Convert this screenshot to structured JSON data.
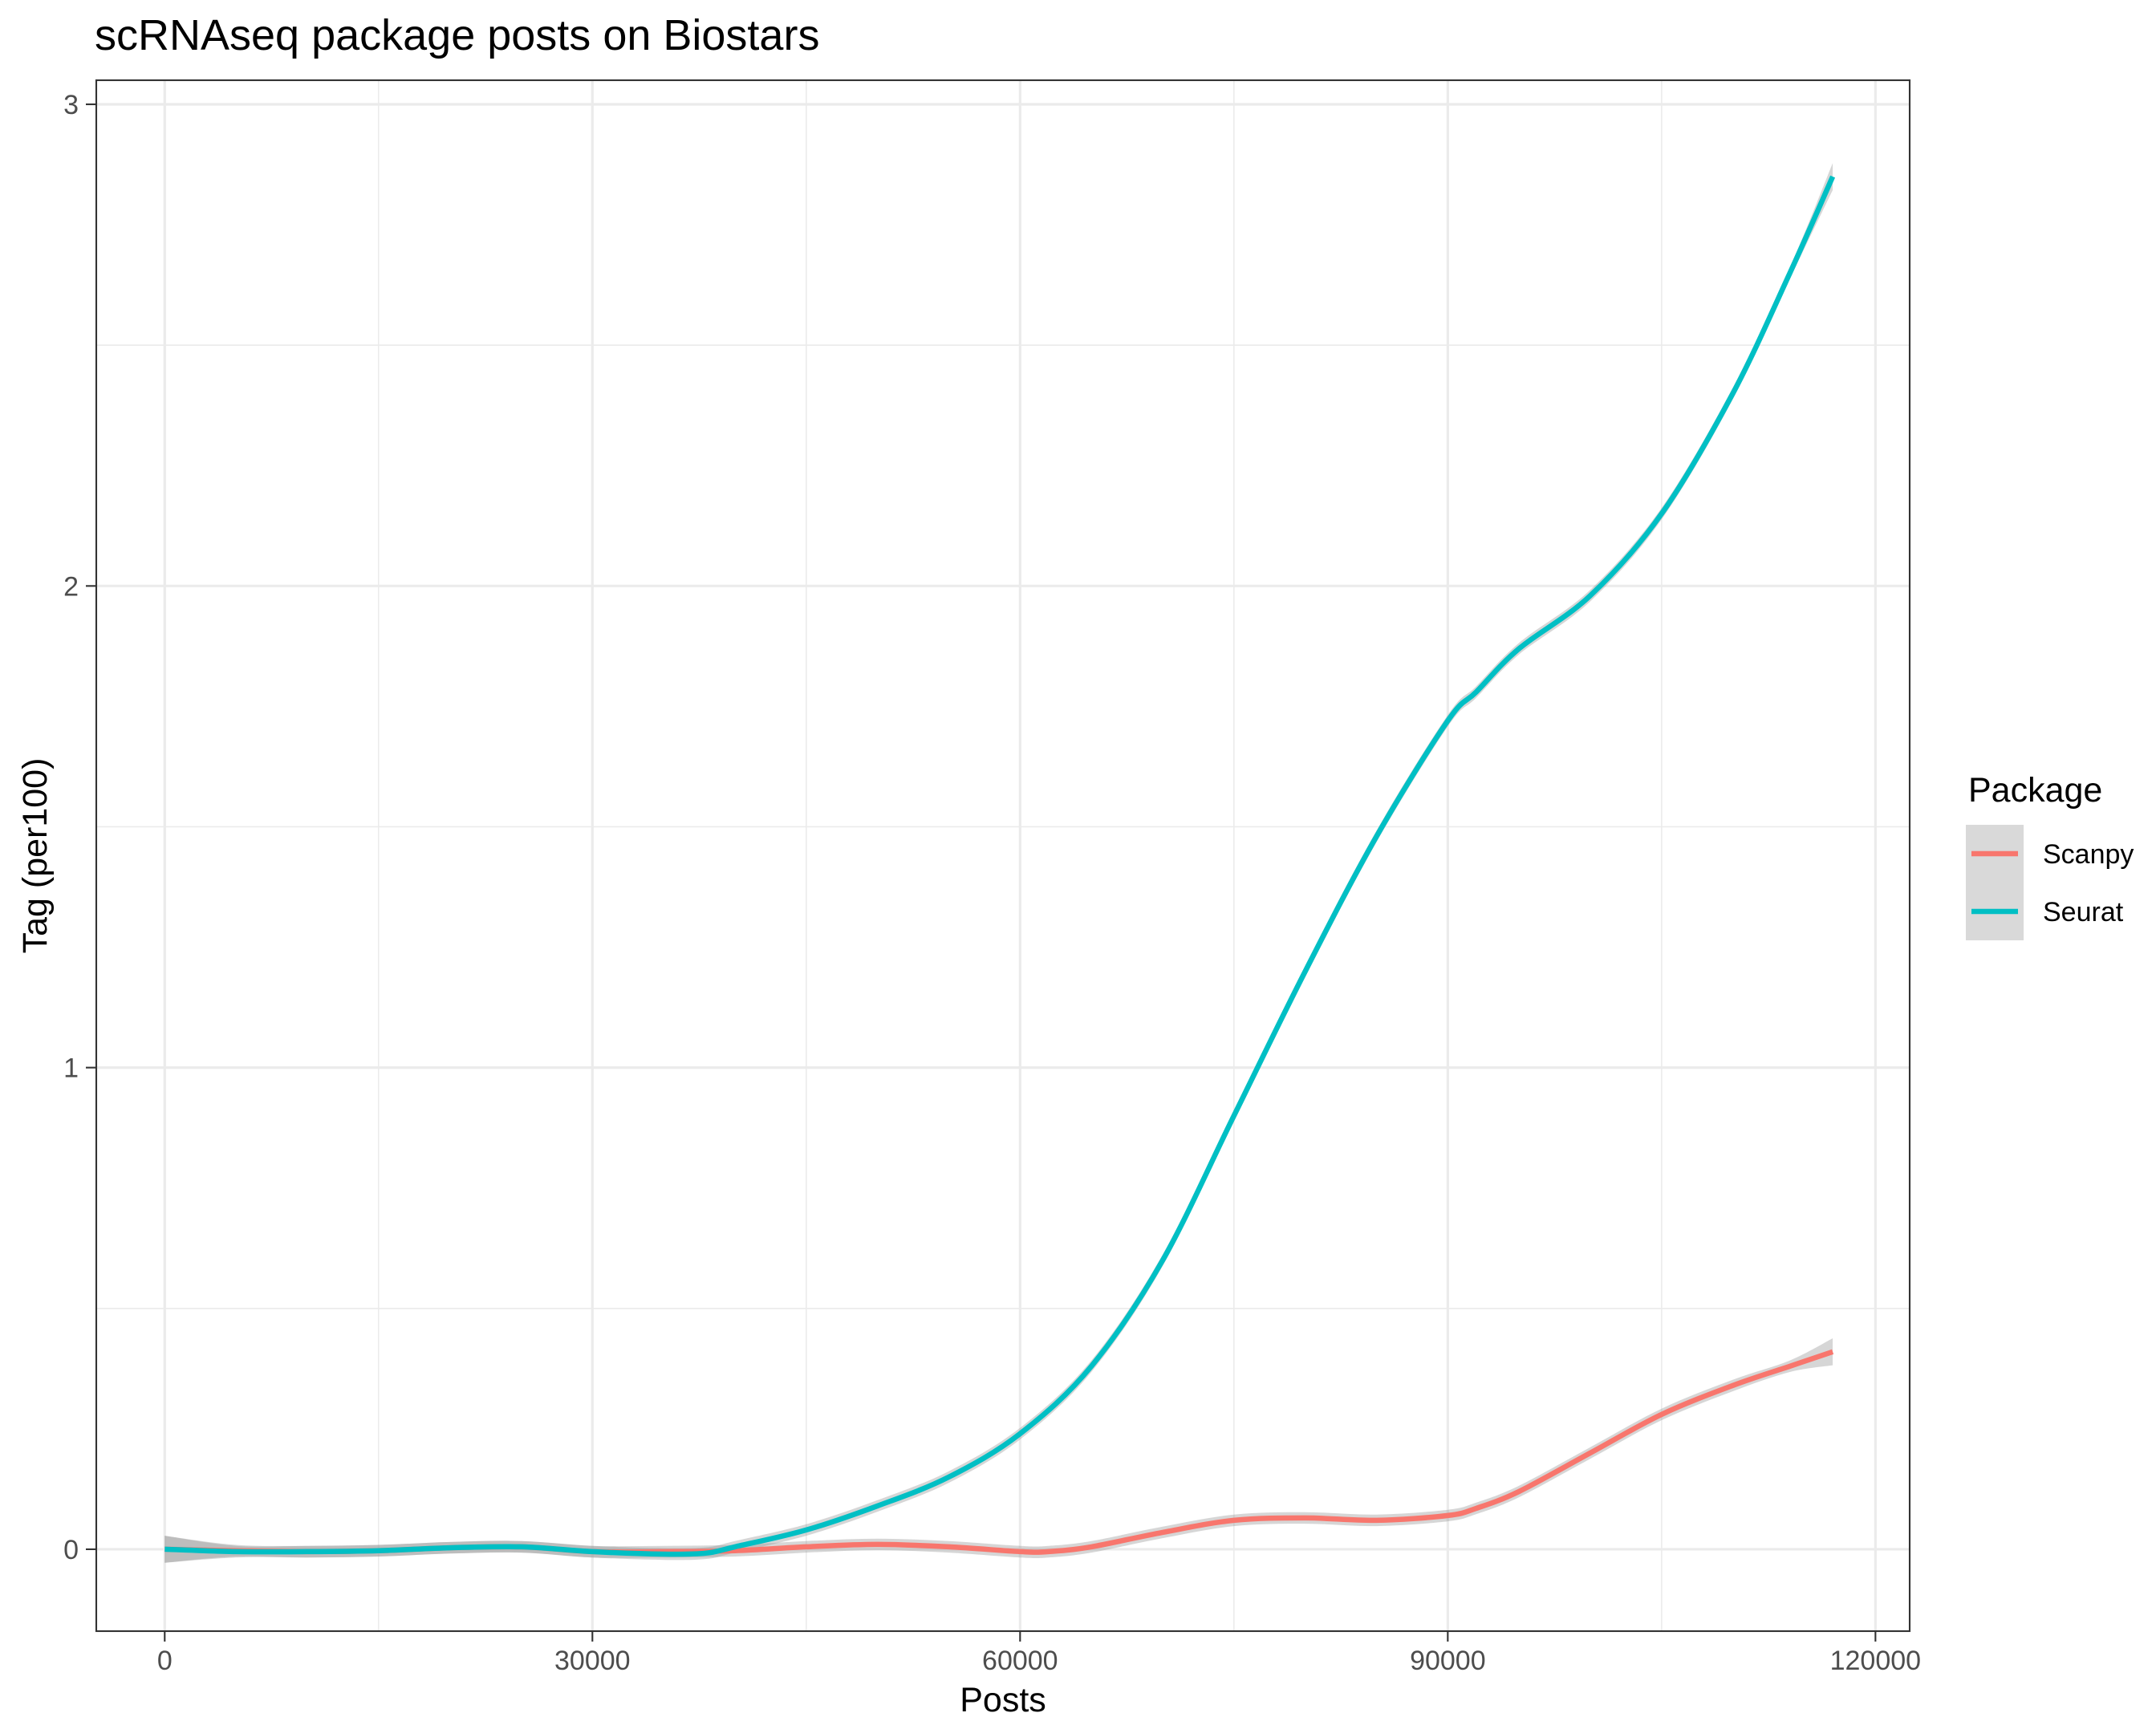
{
  "chart_data": {
    "type": "line",
    "title": "scRNAseq package posts on Biostars",
    "xlabel": "Posts",
    "ylabel": "Tag (per100)",
    "xlim": [
      -4800,
      122400
    ],
    "ylim": [
      -0.17,
      3.05
    ],
    "x_ticks": [
      0,
      30000,
      60000,
      90000,
      120000
    ],
    "x_tick_labels": [
      "0",
      "30000",
      "60000",
      "90000",
      "120000"
    ],
    "y_ticks": [
      0,
      1,
      2,
      3
    ],
    "y_tick_labels": [
      "0",
      "1",
      "2",
      "3"
    ],
    "grid": true,
    "legend": {
      "title": "Package",
      "position": "right"
    },
    "series": [
      {
        "name": "Scanpy",
        "color": "#F8766D",
        "x": [
          0,
          5000,
          10000,
          15000,
          20000,
          25000,
          30000,
          35000,
          40000,
          45000,
          50000,
          55000,
          60000,
          62000,
          65000,
          70000,
          75000,
          80000,
          85000,
          90000,
          92000,
          95000,
          100000,
          105000,
          110000,
          114000,
          117000
        ],
        "y": [
          0.0,
          -0.003,
          -0.005,
          -0.003,
          0.003,
          0.005,
          -0.005,
          -0.005,
          -0.003,
          0.005,
          0.01,
          0.005,
          -0.005,
          -0.005,
          0.005,
          0.035,
          0.06,
          0.065,
          0.06,
          0.07,
          0.085,
          0.12,
          0.2,
          0.28,
          0.34,
          0.38,
          0.41
        ]
      },
      {
        "name": "Seurat",
        "color": "#00BFC4",
        "x": [
          0,
          5000,
          10000,
          15000,
          20000,
          25000,
          30000,
          35000,
          38000,
          40000,
          45000,
          50000,
          55000,
          60000,
          65000,
          70000,
          75000,
          80000,
          85000,
          90000,
          92000,
          95000,
          100000,
          105000,
          110000,
          114000,
          117000
        ],
        "y": [
          0.0,
          -0.005,
          -0.005,
          -0.003,
          0.003,
          0.005,
          -0.005,
          -0.01,
          -0.008,
          0.005,
          0.04,
          0.09,
          0.15,
          0.24,
          0.38,
          0.6,
          0.9,
          1.2,
          1.48,
          1.72,
          1.78,
          1.87,
          1.98,
          2.15,
          2.4,
          2.65,
          2.85
        ]
      }
    ]
  }
}
